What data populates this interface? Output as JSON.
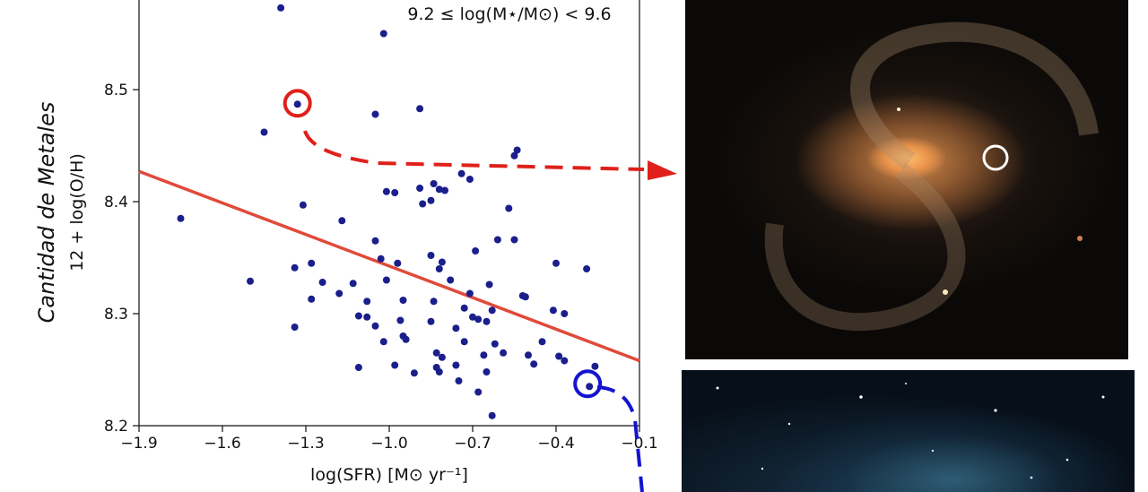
{
  "chart_data": {
    "type": "scatter",
    "title": "",
    "annotation": "9.2 ≤ log(M⋆/M⊙) < 9.6",
    "xlabel": "log(SFR)  [M⊙ yr⁻¹]",
    "ylabel_main": "Cantidad de Metales",
    "ylabel_sub": "12 + log(O/H)",
    "xlim": [
      -1.9,
      -0.1
    ],
    "ylim": [
      8.2,
      8.58
    ],
    "xticks": [
      -1.9,
      -1.6,
      -1.3,
      -1.0,
      -0.7,
      -0.4,
      -0.1
    ],
    "xtick_labels": [
      "−1.9",
      "−1.6",
      "−1.3",
      "−1.0",
      "−0.7",
      "−0.4",
      "−0.1"
    ],
    "yticks": [
      8.2,
      8.3,
      8.4,
      8.5
    ],
    "ytick_labels": [
      "8.2",
      "8.3",
      "8.4",
      "8.5"
    ],
    "grid": false,
    "marker_color": "#1a1f8c",
    "fit_line_color": "#e04a3a",
    "fit_line": {
      "x": [
        -1.9,
        -0.1
      ],
      "y": [
        8.427,
        8.258
      ]
    },
    "highlight_high": {
      "x": -1.33,
      "y": 8.487,
      "color": "#e0201a"
    },
    "highlight_low": {
      "x": -0.28,
      "y": 8.235,
      "color": "#1414d0"
    },
    "points": [
      {
        "x": -1.39,
        "y": 8.573
      },
      {
        "x": -1.02,
        "y": 8.55
      },
      {
        "x": -1.05,
        "y": 8.478
      },
      {
        "x": -0.89,
        "y": 8.483
      },
      {
        "x": -1.45,
        "y": 8.462
      },
      {
        "x": -1.33,
        "y": 8.487
      },
      {
        "x": -0.54,
        "y": 8.446
      },
      {
        "x": -0.55,
        "y": 8.441
      },
      {
        "x": -0.74,
        "y": 8.425
      },
      {
        "x": -0.71,
        "y": 8.42
      },
      {
        "x": -0.84,
        "y": 8.416
      },
      {
        "x": -0.82,
        "y": 8.411
      },
      {
        "x": -0.89,
        "y": 8.412
      },
      {
        "x": -0.8,
        "y": 8.41
      },
      {
        "x": -1.01,
        "y": 8.409
      },
      {
        "x": -0.98,
        "y": 8.408
      },
      {
        "x": -0.88,
        "y": 8.398
      },
      {
        "x": -0.85,
        "y": 8.401
      },
      {
        "x": -1.31,
        "y": 8.397
      },
      {
        "x": -0.57,
        "y": 8.394
      },
      {
        "x": -1.75,
        "y": 8.385
      },
      {
        "x": -1.17,
        "y": 8.383
      },
      {
        "x": -0.61,
        "y": 8.366
      },
      {
        "x": -0.55,
        "y": 8.366
      },
      {
        "x": -1.05,
        "y": 8.365
      },
      {
        "x": -0.69,
        "y": 8.356
      },
      {
        "x": -0.85,
        "y": 8.352
      },
      {
        "x": -1.03,
        "y": 8.349
      },
      {
        "x": -0.97,
        "y": 8.345
      },
      {
        "x": -0.4,
        "y": 8.345
      },
      {
        "x": -0.81,
        "y": 8.346
      },
      {
        "x": -1.28,
        "y": 8.345
      },
      {
        "x": -0.82,
        "y": 8.34
      },
      {
        "x": -1.34,
        "y": 8.341
      },
      {
        "x": -0.29,
        "y": 8.34
      },
      {
        "x": -0.78,
        "y": 8.33
      },
      {
        "x": -1.01,
        "y": 8.33
      },
      {
        "x": -1.5,
        "y": 8.329
      },
      {
        "x": -1.24,
        "y": 8.328
      },
      {
        "x": -0.64,
        "y": 8.326
      },
      {
        "x": -1.13,
        "y": 8.327
      },
      {
        "x": -0.71,
        "y": 8.318
      },
      {
        "x": -0.52,
        "y": 8.316
      },
      {
        "x": -0.51,
        "y": 8.315
      },
      {
        "x": -0.95,
        "y": 8.312
      },
      {
        "x": -1.18,
        "y": 8.318
      },
      {
        "x": -1.28,
        "y": 8.313
      },
      {
        "x": -0.84,
        "y": 8.311
      },
      {
        "x": -1.08,
        "y": 8.311
      },
      {
        "x": -0.73,
        "y": 8.305
      },
      {
        "x": -0.41,
        "y": 8.303
      },
      {
        "x": -0.63,
        "y": 8.303
      },
      {
        "x": -0.37,
        "y": 8.3
      },
      {
        "x": -1.11,
        "y": 8.298
      },
      {
        "x": -0.7,
        "y": 8.297
      },
      {
        "x": -1.08,
        "y": 8.297
      },
      {
        "x": -0.96,
        "y": 8.294
      },
      {
        "x": -0.68,
        "y": 8.295
      },
      {
        "x": -0.65,
        "y": 8.293
      },
      {
        "x": -0.85,
        "y": 8.293
      },
      {
        "x": -1.34,
        "y": 8.288
      },
      {
        "x": -1.05,
        "y": 8.289
      },
      {
        "x": -0.76,
        "y": 8.287
      },
      {
        "x": -0.95,
        "y": 8.28
      },
      {
        "x": -0.94,
        "y": 8.277
      },
      {
        "x": -0.73,
        "y": 8.275
      },
      {
        "x": -1.02,
        "y": 8.275
      },
      {
        "x": -0.62,
        "y": 8.273
      },
      {
        "x": -0.45,
        "y": 8.275
      },
      {
        "x": -0.83,
        "y": 8.265
      },
      {
        "x": -0.66,
        "y": 8.263
      },
      {
        "x": -0.81,
        "y": 8.261
      },
      {
        "x": -0.59,
        "y": 8.265
      },
      {
        "x": -0.5,
        "y": 8.263
      },
      {
        "x": -0.39,
        "y": 8.262
      },
      {
        "x": -0.37,
        "y": 8.258
      },
      {
        "x": -0.98,
        "y": 8.254
      },
      {
        "x": -0.76,
        "y": 8.254
      },
      {
        "x": -0.48,
        "y": 8.255
      },
      {
        "x": -0.26,
        "y": 8.253
      },
      {
        "x": -0.83,
        "y": 8.252
      },
      {
        "x": -1.11,
        "y": 8.252
      },
      {
        "x": -0.65,
        "y": 8.248
      },
      {
        "x": -0.82,
        "y": 8.248
      },
      {
        "x": -0.91,
        "y": 8.247
      },
      {
        "x": -0.75,
        "y": 8.24
      },
      {
        "x": -0.28,
        "y": 8.235
      },
      {
        "x": -0.68,
        "y": 8.23
      },
      {
        "x": -0.63,
        "y": 8.209
      }
    ]
  }
}
